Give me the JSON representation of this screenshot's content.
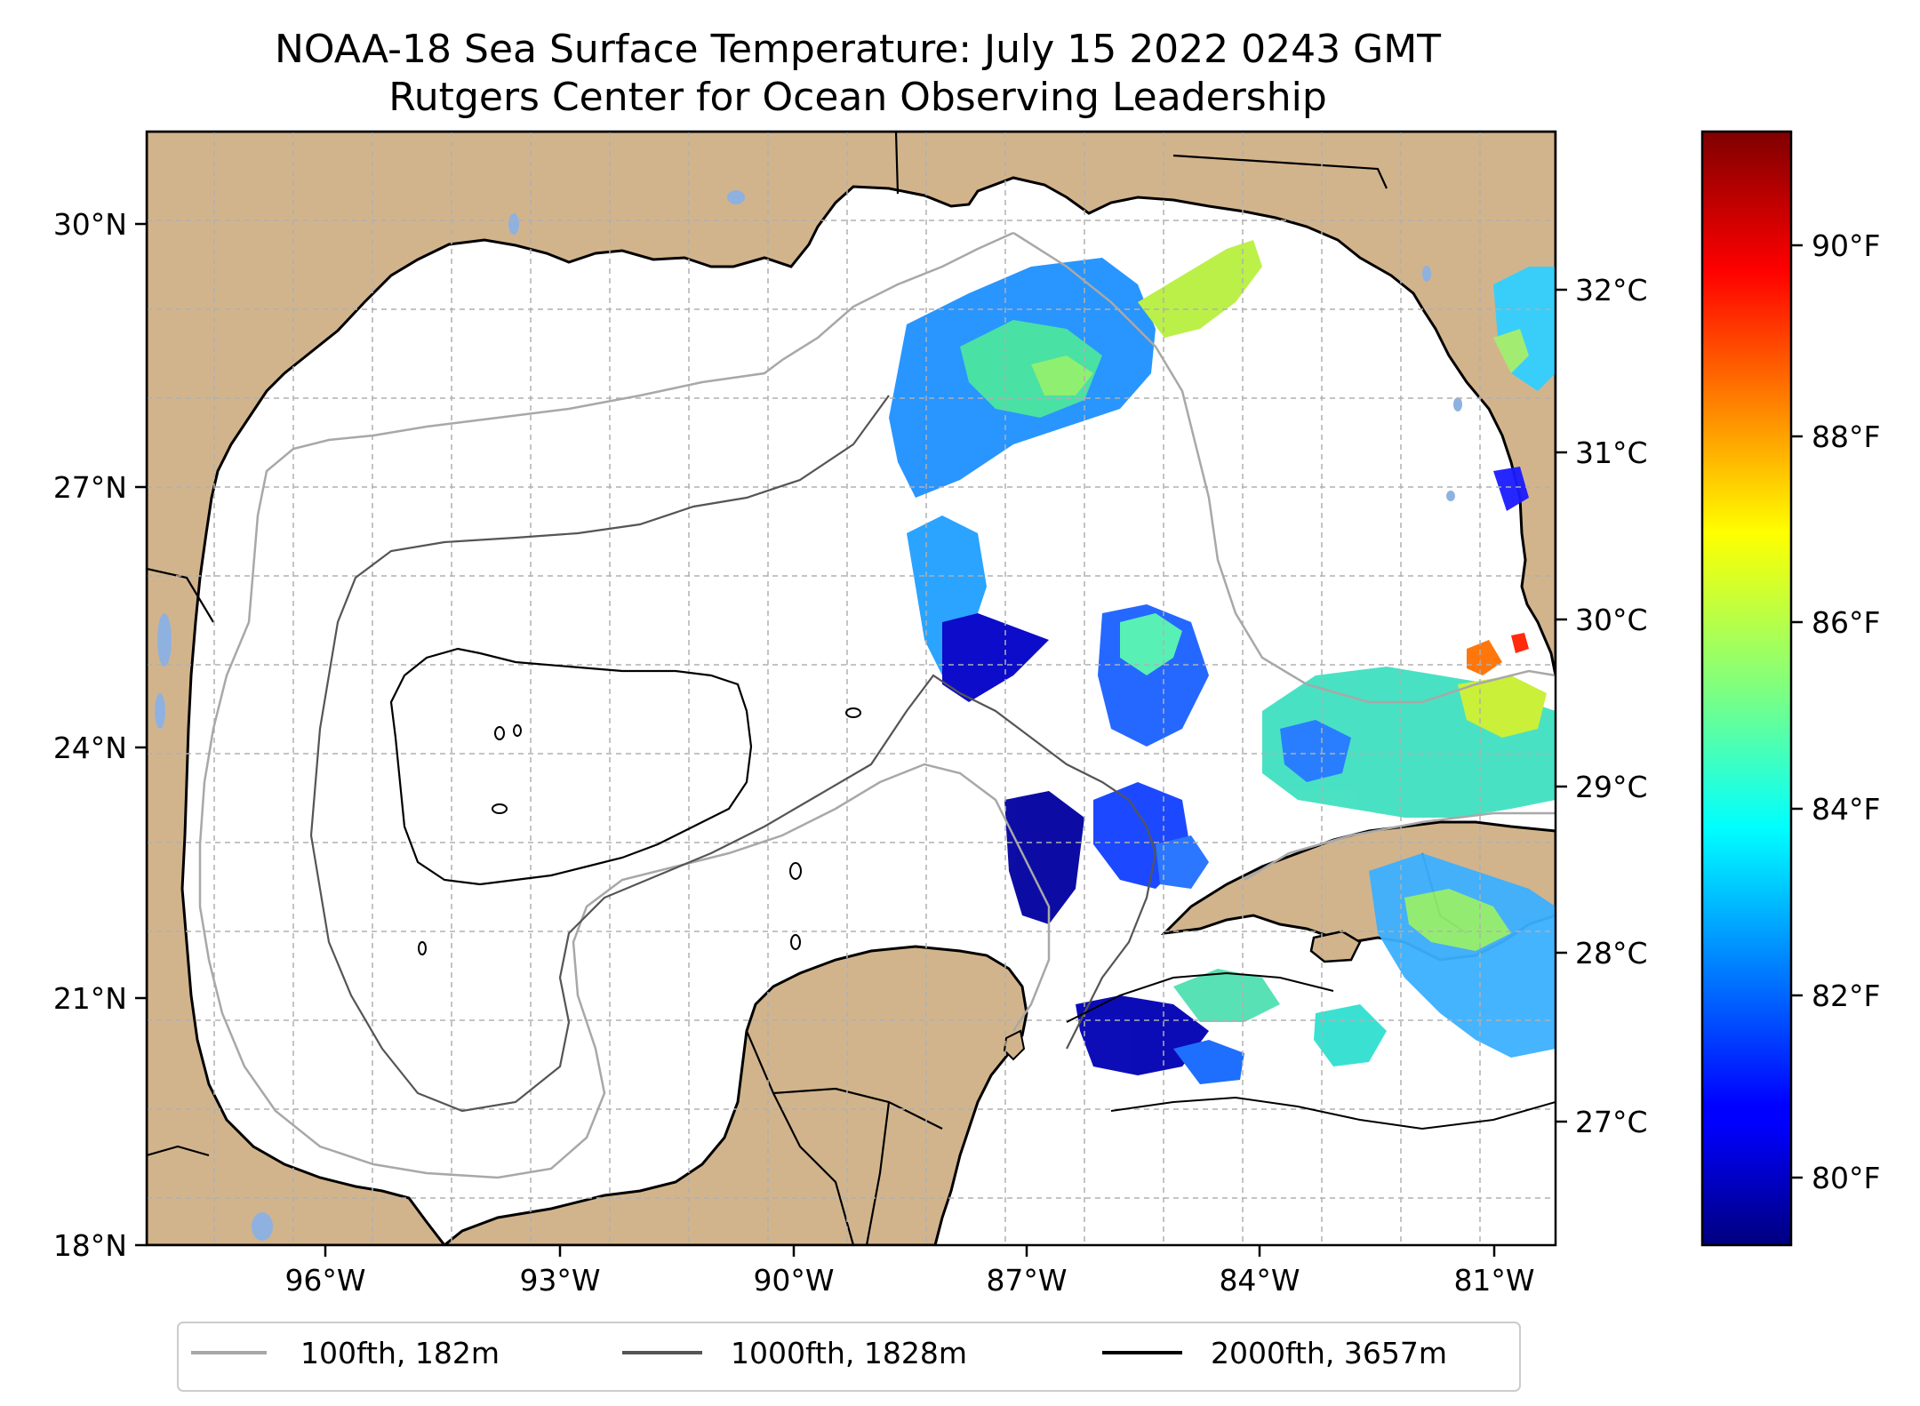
{
  "title": {
    "line1": "NOAA-18 Sea Surface Temperature: July 15 2022 0243 GMT",
    "line2": "Rutgers Center for Ocean Observing Leadership"
  },
  "map": {
    "lon_range": [
      -98.3,
      -80.4
    ],
    "lat_range": [
      18.0,
      31.0
    ],
    "colors": {
      "land": "#d2b48c",
      "ocean": "#ffffff",
      "lakes": "#8fb1e0",
      "coast": "#000000",
      "grid": "#b0b0b0"
    }
  },
  "axes": {
    "lat_ticks": [
      "30°N",
      "27°N",
      "24°N",
      "21°N",
      "18°N"
    ],
    "lon_ticks": [
      "96°W",
      "93°W",
      "90°W",
      "87°W",
      "84°W",
      "81°W"
    ],
    "celsius_ticks": [
      "32°C",
      "31°C",
      "30°C",
      "29°C",
      "28°C",
      "27°C"
    ]
  },
  "colorbar": {
    "colormap": "jet",
    "range_f": [
      79.3,
      91.7
    ],
    "fahrenheit_ticks": [
      "90°F",
      "88°F",
      "86°F",
      "84°F",
      "82°F",
      "80°F"
    ]
  },
  "legend": {
    "items": [
      {
        "label": "100fth, 182m",
        "color": "#a8a8a8"
      },
      {
        "label": "1000fth, 1828m",
        "color": "#555555"
      },
      {
        "label": "2000fth, 3657m",
        "color": "#000000"
      }
    ]
  }
}
